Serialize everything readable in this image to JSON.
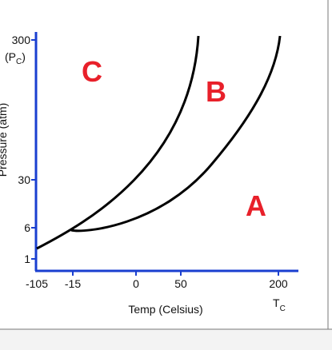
{
  "y_axis": {
    "title": "Pressure (atm)",
    "ticks": [
      "300",
      "30",
      "6",
      "1"
    ],
    "critical": {
      "open": "(P",
      "sub": "C",
      "close": ")"
    }
  },
  "x_axis": {
    "title": "Temp (Celsius)",
    "ticks": [
      "-105",
      "-15",
      "0",
      "50",
      "200"
    ],
    "critical": {
      "main": "T",
      "sub": "C"
    }
  },
  "regions": [
    "C",
    "B",
    "A"
  ]
}
